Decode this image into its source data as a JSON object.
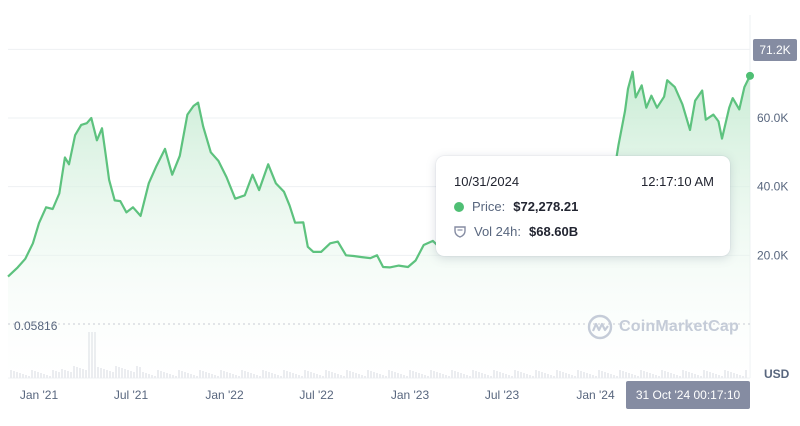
{
  "chart_data": {
    "type": "area",
    "series": [
      {
        "x": [
          "2020-11-01",
          "2020-11-20",
          "2020-12-05",
          "2020-12-20",
          "2021-01-01",
          "2021-01-15",
          "2021-01-28",
          "2021-02-10",
          "2021-02-21",
          "2021-03-01",
          "2021-03-13",
          "2021-03-25",
          "2021-04-05",
          "2021-04-14",
          "2021-04-25",
          "2021-05-05",
          "2021-05-12",
          "2021-05-19",
          "2021-05-30",
          "2021-06-10",
          "2021-06-22",
          "2021-07-05",
          "2021-07-20",
          "2021-08-05",
          "2021-08-20",
          "2021-09-06",
          "2021-09-20",
          "2021-10-05",
          "2021-10-20",
          "2021-11-01",
          "2021-11-10",
          "2021-11-20",
          "2021-12-05",
          "2021-12-20",
          "2022-01-05",
          "2022-01-22",
          "2022-02-10",
          "2022-02-25",
          "2022-03-10",
          "2022-03-28",
          "2022-04-12",
          "2022-04-28",
          "2022-05-09",
          "2022-05-20",
          "2022-06-05",
          "2022-06-14",
          "2022-06-25",
          "2022-07-10",
          "2022-07-28",
          "2022-08-12",
          "2022-08-28",
          "2022-09-12",
          "2022-09-28",
          "2022-10-15",
          "2022-10-28",
          "2022-11-09",
          "2022-11-22",
          "2022-12-10",
          "2022-12-28",
          "2023-01-12",
          "2023-01-28",
          "2023-02-15",
          "2023-03-01",
          "2023-03-15",
          "2023-03-28",
          "2023-04-12",
          "2023-04-28",
          "2023-05-15",
          "2023-05-30",
          "2023-06-15",
          "2023-06-28",
          "2023-07-15",
          "2023-07-28",
          "2023-08-15",
          "2023-08-20",
          "2023-09-05",
          "2023-09-28",
          "2023-10-15",
          "2023-10-25",
          "2023-11-10",
          "2023-11-28",
          "2023-12-10",
          "2023-12-28",
          "2024-01-11",
          "2024-01-23",
          "2024-02-05",
          "2024-02-15",
          "2024-02-28",
          "2024-03-05",
          "2024-03-14",
          "2024-03-20",
          "2024-04-01",
          "2024-04-10",
          "2024-04-20",
          "2024-05-01",
          "2024-05-15",
          "2024-05-21",
          "2024-06-05",
          "2024-06-20",
          "2024-07-05",
          "2024-07-15",
          "2024-07-29",
          "2024-08-05",
          "2024-08-20",
          "2024-08-30",
          "2024-09-06",
          "2024-09-20",
          "2024-09-27",
          "2024-10-10",
          "2024-10-20",
          "2024-10-31"
        ],
        "y": [
          13800,
          16500,
          19000,
          23500,
          29400,
          34000,
          33500,
          38000,
          48500,
          46500,
          55000,
          58000,
          58500,
          60000,
          53500,
          57000,
          49500,
          42000,
          36000,
          35800,
          32500,
          34000,
          31500,
          41000,
          46000,
          51000,
          43500,
          49000,
          61000,
          63500,
          64500,
          57500,
          50000,
          47500,
          42800,
          36500,
          37500,
          43500,
          39000,
          46500,
          41000,
          38500,
          34500,
          29500,
          29600,
          22500,
          21000,
          21000,
          23500,
          24000,
          20000,
          19800,
          19500,
          19200,
          20000,
          16600,
          16500,
          17000,
          16600,
          18500,
          23000,
          24200,
          22200,
          24800,
          28000,
          30500,
          29500,
          27500,
          26500,
          25500,
          30200,
          30600,
          29800,
          29000,
          26100,
          26000,
          27000,
          28500,
          34500,
          36000,
          37800,
          43500,
          42800,
          46000,
          39500,
          42800,
          52000,
          62000,
          68500,
          73500,
          66000,
          69500,
          63000,
          66500,
          63000,
          66200,
          71000,
          69000,
          64000,
          56500,
          65000,
          68000,
          59500,
          61000,
          59000,
          54000,
          63000,
          65800,
          62500,
          69000,
          72278.21
        ]
      }
    ],
    "volume_note": "small volume bars along bottom, one spike near Jan '21",
    "xlabels": [
      "Jan '21",
      "Jul '21",
      "Jan '22",
      "Jul '22",
      "Jan '23",
      "Jul '23",
      "Jan '24"
    ],
    "yticks": [
      "20.0K",
      "40.0K",
      "60.0K"
    ],
    "ylim": [
      0,
      90000
    ],
    "baseline_label": "0.05816",
    "current_price_label": "71.2K",
    "currency": "USD",
    "grid": true
  },
  "colors": {
    "line": "#5dc27e",
    "fill_top": "#cfeed9",
    "badge": "#858ca2",
    "dot": "#4fbf74",
    "watermark": "#c5ccd8"
  },
  "tooltip": {
    "date": "10/31/2024",
    "time": "12:17:10 AM",
    "price_label": "Price:",
    "price_value": "$72,278.21",
    "vol_label": "Vol 24h:",
    "vol_value": "$68.60B"
  },
  "hover_date_badge": "31 Oct '24 00:17:10",
  "watermark": {
    "text": "CoinMarketCap",
    "icon": "coinmarketcap-logo-icon"
  }
}
